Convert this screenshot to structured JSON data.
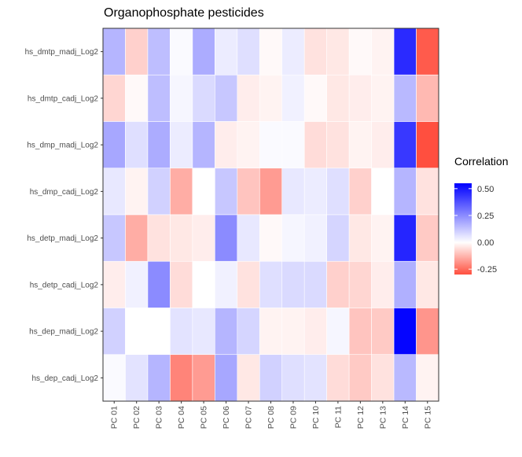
{
  "chart_data": {
    "type": "heatmap",
    "title": "Organophosphate pesticides",
    "xlabel": "",
    "ylabel": "",
    "x_categories": [
      "PC 01",
      "PC 02",
      "PC 03",
      "PC 04",
      "PC 05",
      "PC 06",
      "PC 07",
      "PC 08",
      "PC 09",
      "PC 10",
      "PC 11",
      "PC 12",
      "PC 13",
      "PC 14",
      "PC 15"
    ],
    "y_categories": [
      "hs_dmtp_madj_Log2",
      "hs_dmtp_cadj_Log2",
      "hs_dmp_madj_Log2",
      "hs_dmp_cadj_Log2",
      "hs_detp_madj_Log2",
      "hs_detp_cadj_Log2",
      "hs_dep_madj_Log2",
      "hs_dep_cadj_Log2"
    ],
    "values": [
      [
        0.16,
        -0.08,
        0.14,
        0.01,
        0.18,
        0.04,
        0.07,
        -0.01,
        0.04,
        -0.05,
        -0.04,
        -0.01,
        -0.02,
        0.46,
        -0.28
      ],
      [
        -0.07,
        -0.01,
        0.14,
        0.02,
        0.08,
        0.12,
        -0.03,
        -0.02,
        0.03,
        -0.01,
        -0.04,
        -0.03,
        -0.02,
        0.15,
        -0.12
      ],
      [
        0.19,
        0.07,
        0.18,
        0.04,
        0.16,
        -0.03,
        -0.02,
        0.01,
        0.01,
        -0.06,
        -0.05,
        -0.02,
        -0.03,
        0.43,
        -0.31
      ],
      [
        0.05,
        -0.02,
        0.1,
        -0.14,
        0.0,
        0.12,
        -0.1,
        -0.17,
        0.05,
        0.04,
        0.07,
        -0.08,
        0.0,
        0.16,
        -0.05
      ],
      [
        0.12,
        -0.14,
        -0.05,
        -0.04,
        -0.03,
        0.25,
        0.05,
        -0.01,
        0.02,
        0.03,
        0.09,
        -0.04,
        -0.02,
        0.47,
        -0.09
      ],
      [
        -0.03,
        0.03,
        0.25,
        -0.06,
        0.0,
        0.03,
        -0.05,
        0.07,
        0.08,
        0.08,
        -0.08,
        -0.07,
        -0.03,
        0.17,
        -0.04
      ],
      [
        0.1,
        0.0,
        0.0,
        0.06,
        0.05,
        0.16,
        0.09,
        -0.02,
        -0.02,
        -0.03,
        0.02,
        -0.1,
        -0.09,
        0.54,
        -0.18
      ],
      [
        0.01,
        0.06,
        0.16,
        -0.21,
        -0.17,
        0.19,
        -0.04,
        0.1,
        0.07,
        0.06,
        -0.06,
        -0.09,
        -0.05,
        0.15,
        -0.02
      ]
    ],
    "color_scale": {
      "low": "#ff4f3f",
      "mid": "#ffffff",
      "high": "#0000ff",
      "midpoint": 0,
      "limits": [
        -0.3,
        0.55
      ]
    },
    "legend": {
      "title": "Correlation",
      "ticks": [
        0.5,
        0.25,
        0.0,
        -0.25
      ],
      "tick_labels": [
        "0.50",
        "0.25",
        "0.00",
        "-0.25"
      ],
      "position": "right"
    },
    "grid": false
  }
}
